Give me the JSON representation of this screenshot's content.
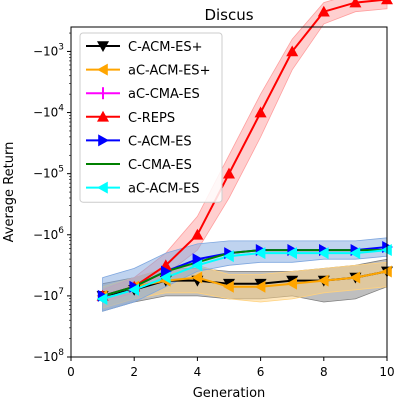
{
  "chart_data": {
    "type": "line",
    "title": "Discus",
    "xlabel": "Generation",
    "ylabel": "Average Return",
    "xlim": [
      0,
      10
    ],
    "ylim": [
      -8,
      -2.6
    ],
    "y_scale": "symlog (negative, log magnitude)",
    "x_ticks": [
      0,
      2,
      4,
      6,
      8,
      10
    ],
    "x_tick_labels": [
      "0",
      "2",
      "4",
      "6",
      "8",
      "10"
    ],
    "y_ticks": [
      -8,
      -7,
      -6,
      -5,
      -4,
      -3
    ],
    "y_tick_labels": [
      "−10^8",
      "−10^7",
      "−10^6",
      "−10^5",
      "−10^4",
      "−10^3"
    ],
    "legend_position": "top-left",
    "x": [
      1,
      2,
      3,
      4,
      5,
      6,
      7,
      8,
      9,
      10
    ],
    "series": [
      {
        "name": "C-ACM-ES+",
        "color": "#000000",
        "marker": "triangle-down",
        "y_log10_magnitude": [
          7.0,
          6.9,
          6.75,
          6.75,
          6.8,
          6.8,
          6.75,
          6.75,
          6.7,
          6.6
        ],
        "band_low": [
          7.25,
          7.1,
          7.0,
          7.0,
          7.05,
          7.05,
          7.0,
          7.1,
          7.05,
          6.85
        ],
        "band_high": [
          6.8,
          6.7,
          6.55,
          6.55,
          6.6,
          6.6,
          6.6,
          6.55,
          6.5,
          6.4
        ],
        "band_color": "#7f7f7f"
      },
      {
        "name": "aC-ACM-ES+",
        "color": "#ffa500",
        "marker": "triangle-left",
        "y_log10_magnitude": [
          7.0,
          6.85,
          6.75,
          6.7,
          6.85,
          6.85,
          6.8,
          6.75,
          6.7,
          6.6
        ],
        "band_low": [
          7.2,
          7.05,
          6.95,
          6.95,
          7.05,
          7.1,
          7.05,
          6.95,
          6.9,
          6.85
        ],
        "band_high": [
          6.85,
          6.7,
          6.55,
          6.5,
          6.65,
          6.65,
          6.6,
          6.55,
          6.5,
          6.45
        ],
        "band_color": "#ffd27f"
      },
      {
        "name": "aC-CMA-ES",
        "color": "#ff00ff",
        "marker": "tick-down",
        "y_log10_magnitude": [],
        "band_low": [],
        "band_high": [],
        "band_color": "#ff7fff"
      },
      {
        "name": "C-REPS",
        "color": "#ff0000",
        "marker": "triangle-up",
        "y_log10_magnitude": [
          7.0,
          6.85,
          6.5,
          6.0,
          5.0,
          4.0,
          3.0,
          2.35,
          2.2,
          2.15
        ],
        "band_low": [
          7.1,
          6.95,
          6.65,
          6.25,
          5.4,
          4.4,
          3.3,
          2.55,
          2.35,
          2.3
        ],
        "band_high": [
          6.9,
          6.7,
          6.3,
          5.7,
          4.7,
          3.7,
          2.8,
          2.2,
          2.05,
          2.05
        ],
        "band_color": "#ff9f9f"
      },
      {
        "name": "C-ACM-ES",
        "color": "#0000ff",
        "marker": "triangle-right",
        "y_log10_magnitude": [
          7.0,
          6.85,
          6.6,
          6.4,
          6.3,
          6.25,
          6.25,
          6.25,
          6.25,
          6.2
        ],
        "band_low": [
          7.25,
          7.1,
          6.85,
          6.6,
          6.5,
          6.45,
          6.45,
          6.4,
          6.4,
          6.35
        ],
        "band_high": [
          6.7,
          6.55,
          6.3,
          6.15,
          6.1,
          6.1,
          6.1,
          6.1,
          6.1,
          6.05
        ],
        "band_color": "#7fa7df"
      },
      {
        "name": "C-CMA-ES",
        "color": "#008000",
        "marker": "none",
        "y_log10_magnitude": [
          7.0,
          6.85,
          6.6,
          6.45,
          6.3,
          6.25,
          6.25,
          6.25,
          6.25,
          6.25
        ],
        "band_low": [],
        "band_high": [],
        "band_color": "#7fbf7f"
      },
      {
        "name": "aC-ACM-ES",
        "color": "#00ffff",
        "marker": "triangle-left",
        "y_log10_magnitude": [
          7.05,
          6.9,
          6.7,
          6.5,
          6.35,
          6.3,
          6.3,
          6.3,
          6.3,
          6.25
        ],
        "band_low": [],
        "band_high": [],
        "band_color": "#7fffff"
      }
    ]
  }
}
